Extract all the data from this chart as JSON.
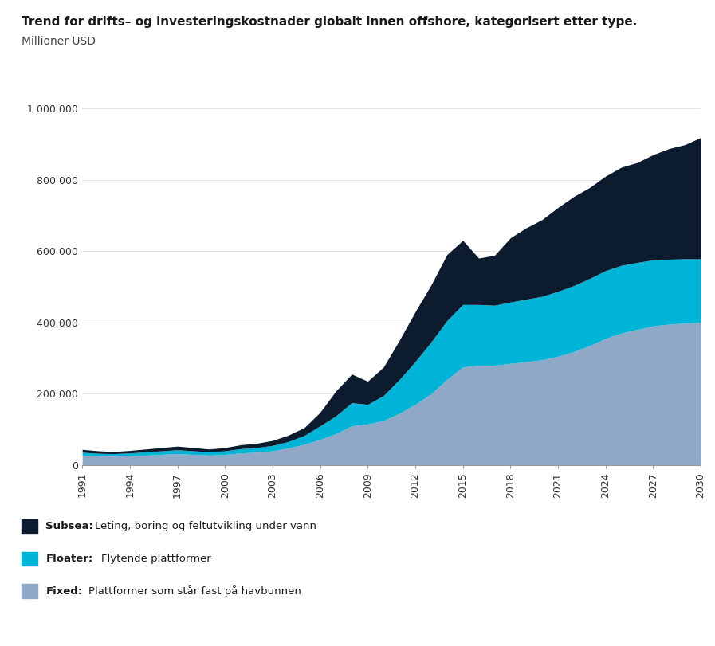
{
  "title": "Trend for drifts– og investeringskostnader globalt innen offshore, kategorisert etter type.",
  "subtitle": "Millioner USD",
  "years": [
    1991,
    1992,
    1993,
    1994,
    1995,
    1996,
    1997,
    1998,
    1999,
    2000,
    2001,
    2002,
    2003,
    2004,
    2005,
    2006,
    2007,
    2008,
    2009,
    2010,
    2011,
    2012,
    2013,
    2014,
    2015,
    2016,
    2017,
    2018,
    2019,
    2020,
    2021,
    2022,
    2023,
    2024,
    2025,
    2026,
    2027,
    2028,
    2029,
    2030
  ],
  "fixed": [
    28000,
    26000,
    25000,
    26000,
    28000,
    30000,
    32000,
    30000,
    28000,
    30000,
    34000,
    36000,
    40000,
    48000,
    58000,
    72000,
    88000,
    110000,
    115000,
    125000,
    145000,
    170000,
    200000,
    240000,
    275000,
    280000,
    280000,
    285000,
    290000,
    295000,
    305000,
    318000,
    335000,
    355000,
    370000,
    380000,
    390000,
    395000,
    398000,
    400000
  ],
  "floater": [
    8000,
    7000,
    7000,
    8000,
    9000,
    10000,
    11000,
    10000,
    9000,
    10000,
    12000,
    13000,
    15000,
    18000,
    25000,
    38000,
    50000,
    65000,
    55000,
    70000,
    95000,
    120000,
    145000,
    165000,
    175000,
    170000,
    168000,
    172000,
    175000,
    178000,
    182000,
    185000,
    188000,
    190000,
    190000,
    188000,
    185000,
    182000,
    180000,
    178000
  ],
  "subsea": [
    8000,
    7000,
    6000,
    7000,
    8000,
    9000,
    10000,
    9000,
    8000,
    9000,
    11000,
    12000,
    14000,
    18000,
    22000,
    38000,
    70000,
    80000,
    65000,
    80000,
    110000,
    140000,
    160000,
    185000,
    180000,
    130000,
    140000,
    180000,
    200000,
    215000,
    235000,
    250000,
    255000,
    265000,
    275000,
    280000,
    295000,
    310000,
    320000,
    340000
  ],
  "color_fixed": "#8fa8c8",
  "color_floater": "#00b4d8",
  "color_subsea": "#0d1b2e",
  "legend_subsea": "Subsea",
  "legend_floater": "Floater",
  "legend_fixed": "Fixed",
  "desc_subsea": "Leting, boring og feltutvikling under vann",
  "desc_floater": "Flytende plattformer",
  "desc_fixed": "Plattformer som står fast på havbunnen",
  "ytick_labels": [
    "0",
    "200 000",
    "400 000",
    "600 000",
    "800 000",
    "1 000 000"
  ],
  "ytick_values": [
    0,
    200000,
    400000,
    600000,
    800000,
    1000000
  ],
  "ylim": [
    0,
    1050000
  ],
  "xtick_years": [
    1991,
    1994,
    1997,
    2000,
    2003,
    2006,
    2009,
    2012,
    2015,
    2018,
    2021,
    2024,
    2027,
    2030
  ],
  "background_color": "#ffffff",
  "title_fontsize": 11,
  "subtitle_fontsize": 10,
  "axis_fontsize": 9,
  "legend_fontsize": 9.5
}
